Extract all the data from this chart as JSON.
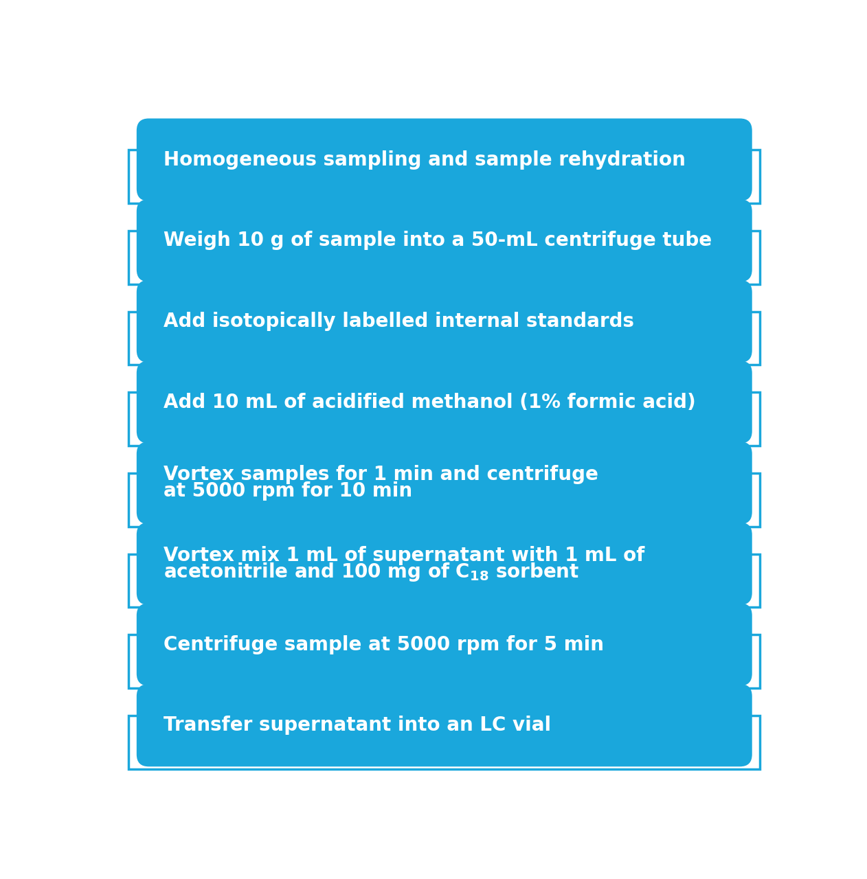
{
  "background_color": "#ffffff",
  "box_fill_color": "#1aa7dc",
  "bracket_edge_color": "#1aa7dc",
  "text_color": "#ffffff",
  "steps": [
    {
      "lines": [
        "Homogeneous sampling and sample rehydration"
      ],
      "two_line": false
    },
    {
      "lines": [
        "Weigh 10 g of sample into a 50-mL centrifuge tube"
      ],
      "two_line": false
    },
    {
      "lines": [
        "Add isotopically labelled internal standards"
      ],
      "two_line": false
    },
    {
      "lines": [
        "Add 10 mL of acidified methanol (1% formic acid)"
      ],
      "two_line": false
    },
    {
      "lines": [
        "Vortex samples for 1 min and centrifuge",
        "at 5000 rpm for 10 min"
      ],
      "two_line": true,
      "subscript": false
    },
    {
      "lines": [
        "Vortex mix 1 mL of supernatant with 1 mL of",
        "acetonitrile and 100 mg of C18 sorbent"
      ],
      "two_line": true,
      "subscript": true
    },
    {
      "lines": [
        "Centrifuge sample at 5000 rpm for 5 min"
      ],
      "two_line": false
    },
    {
      "lines": [
        "Transfer supernatant into an LC vial"
      ],
      "two_line": false
    }
  ],
  "fig_width": 12.62,
  "fig_height": 12.8,
  "dpi": 100,
  "fontsize": 20
}
